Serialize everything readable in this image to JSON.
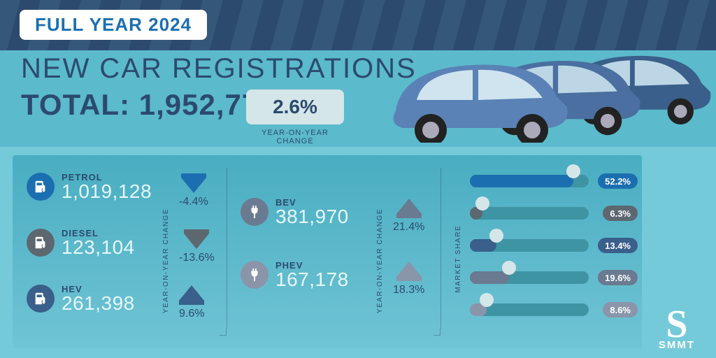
{
  "colors": {
    "teal_bg": "#74cad9",
    "teal_band": "#5bbacb",
    "navy": "#2c4a6e",
    "navy_stripe": "#35587a",
    "panel_top": "#4aadc1",
    "panel_bot": "#6fc4d5",
    "pale": "#d5e6e9",
    "badge_text": "#1b6fb0",
    "white": "#ffffff"
  },
  "badge": "FULL YEAR 2024",
  "title": "NEW CAR REGISTRATIONS",
  "total_label": "TOTAL:",
  "total_value": "1,952,778",
  "yoy_value": "2.6%",
  "yoy_label": "YEAR-ON-YEAR CHANGE",
  "fuels_left": [
    {
      "label": "PETROL",
      "value": "1,019,128",
      "icon_bg": "#1b6fb0"
    },
    {
      "label": "DIESEL",
      "value": "123,104",
      "icon_bg": "#5d6770"
    },
    {
      "label": "HEV",
      "value": "261,398",
      "icon_bg": "#3a5f8a"
    }
  ],
  "yoy_left": [
    {
      "dir": "down",
      "pct": "-4.4%",
      "color": "#1b6fb0"
    },
    {
      "dir": "down",
      "pct": "-13.6%",
      "color": "#5d6770"
    },
    {
      "dir": "up",
      "pct": "9.6%",
      "color": "#3a5f8a"
    }
  ],
  "fuels_right": [
    {
      "label": "BEV",
      "value": "381,970",
      "icon_bg": "#6a7a90"
    },
    {
      "label": "PHEV",
      "value": "167,178",
      "icon_bg": "#8a95aa"
    }
  ],
  "yoy_right": [
    {
      "dir": "up",
      "pct": "21.4%",
      "color": "#6a7a90"
    },
    {
      "dir": "up",
      "pct": "18.3%",
      "color": "#8a95aa"
    }
  ],
  "share_label": "MARKET SHARE",
  "yoy_col_label": "YEAR-ON-YEAR CHANGE",
  "market_share": {
    "max": 60,
    "rows": [
      {
        "pct": 52.2,
        "label": "52.2%",
        "color": "#1b6fb0"
      },
      {
        "pct": 6.3,
        "label": "6.3%",
        "color": "#5d6770"
      },
      {
        "pct": 13.4,
        "label": "13.4%",
        "color": "#3a5f8a"
      },
      {
        "pct": 19.6,
        "label": "19.6%",
        "color": "#6a7a90"
      },
      {
        "pct": 8.6,
        "label": "8.6%",
        "color": "#8a95aa"
      }
    ]
  },
  "logo": {
    "mark": "S",
    "text": "SMMT"
  }
}
